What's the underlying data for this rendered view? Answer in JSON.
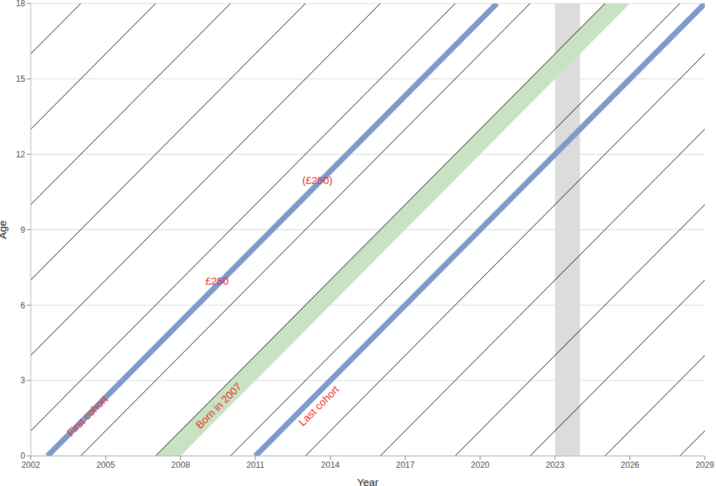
{
  "chart_data": {
    "type": "line",
    "x_label": "Year",
    "y_label": "Age",
    "xlim": [
      2002,
      2029
    ],
    "xticks": [
      2002,
      2005,
      2008,
      2011,
      2014,
      2017,
      2020,
      2023,
      2026,
      2029
    ],
    "ylim": [
      0,
      18
    ],
    "yticks": [
      0,
      3,
      6,
      9,
      12,
      15,
      18
    ],
    "grid": true,
    "shaded_x": [
      2023,
      2024
    ],
    "shaded_color": "#dcdcdc",
    "series": [
      {
        "color": "#000000",
        "x": [
          1986,
          2004
        ],
        "values": [
          0,
          18
        ]
      },
      {
        "color": "#000000",
        "x": [
          1989,
          2007
        ],
        "values": [
          0,
          18
        ]
      },
      {
        "color": "#000000",
        "x": [
          1992,
          2010
        ],
        "values": [
          0,
          18
        ]
      },
      {
        "color": "#000000",
        "x": [
          1995,
          2013
        ],
        "values": [
          0,
          18
        ]
      },
      {
        "color": "#000000",
        "x": [
          1998,
          2016
        ],
        "values": [
          0,
          18
        ]
      },
      {
        "color": "#000000",
        "x": [
          2001,
          2019
        ],
        "values": [
          0,
          18
        ]
      },
      {
        "color": "#000000",
        "x": [
          2004,
          2022
        ],
        "values": [
          0,
          18
        ]
      },
      {
        "color": "#000000",
        "x": [
          2007,
          2025
        ],
        "values": [
          0,
          18
        ]
      },
      {
        "color": "#000000",
        "x": [
          2010,
          2028
        ],
        "values": [
          0,
          18
        ]
      },
      {
        "color": "#000000",
        "x": [
          2013,
          2031
        ],
        "values": [
          0,
          18
        ]
      },
      {
        "color": "#000000",
        "x": [
          2016,
          2034
        ],
        "values": [
          0,
          18
        ]
      },
      {
        "color": "#000000",
        "x": [
          2019,
          2037
        ],
        "values": [
          0,
          18
        ]
      },
      {
        "color": "#000000",
        "x": [
          2022,
          2040
        ],
        "values": [
          0,
          18
        ]
      },
      {
        "color": "#000000",
        "x": [
          2025,
          2043
        ],
        "values": [
          0,
          18
        ]
      },
      {
        "color": "#000000",
        "x": [
          2028,
          2046
        ],
        "values": [
          0,
          18
        ]
      },
      {
        "type": "area",
        "color": "#c8e2c2",
        "x": [
          2007,
          2008,
          2025,
          2026
        ],
        "values": [
          [
            0,
            0
          ],
          [
            0,
            1
          ],
          [
            17,
            18
          ],
          [
            18,
            18
          ]
        ]
      },
      {
        "color": "#7b9bcb",
        "line_style": "thick",
        "x": [
          2002.67,
          2020.67
        ],
        "values": [
          0,
          18
        ]
      },
      {
        "color": "#7b9bcb",
        "line_style": "thick",
        "x": [
          2011,
          2029
        ],
        "values": [
          0,
          18
        ]
      }
    ],
    "annotations": [
      {
        "text": "First cohort",
        "x": 2004.26,
        "y": 1.6,
        "color": "#e8302a",
        "orientation": "diagonal"
      },
      {
        "text": "£250",
        "x": 2009.46,
        "y": 6.96,
        "color": "#e8302a"
      },
      {
        "text": "(£250)",
        "x": 2013.48,
        "y": 10.97,
        "color": "#e8302a"
      },
      {
        "text": "Born in 2007",
        "x": 2009.52,
        "y": 2.0,
        "color": "#e8302a",
        "orientation": "diagonal"
      },
      {
        "text": "Last cohort",
        "x": 2013.53,
        "y": 2.0,
        "color": "#e8302a",
        "orientation": "diagonal"
      }
    ]
  }
}
